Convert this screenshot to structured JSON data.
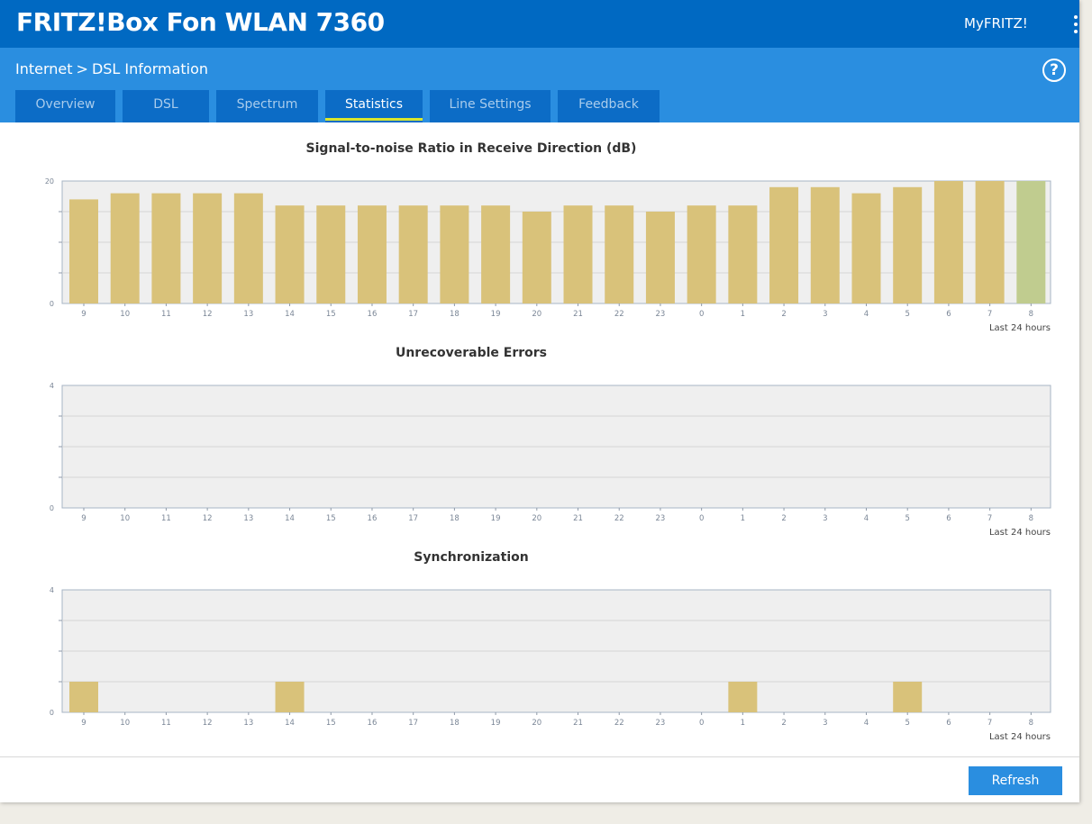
{
  "header": {
    "product_name": "FRITZ!Box Fon WLAN 7360",
    "myfritz_label": "MyFRITZ!",
    "menu_icon": "kebab-menu-icon"
  },
  "breadcrumb": {
    "parent": "Internet",
    "separator": ">",
    "current": "DSL Information"
  },
  "help_icon": "help-icon",
  "help_glyph": "?",
  "tabs": [
    {
      "label": "Overview",
      "active": false
    },
    {
      "label": "DSL",
      "active": false
    },
    {
      "label": "Spectrum",
      "active": false
    },
    {
      "label": "Statistics",
      "active": true
    },
    {
      "label": "Line Settings",
      "active": false
    },
    {
      "label": "Feedback",
      "active": false
    }
  ],
  "colors": {
    "header": "#0069c2",
    "subheader": "#2a8ee0",
    "tab_bg": "#0c6cc6",
    "tab_active_underline": "#d9e62d",
    "bar": "#d9c27a",
    "bar_current": "#c0cc8f",
    "plot_bg": "#efefef"
  },
  "chart_data": [
    {
      "type": "bar",
      "title": "Signal-to-noise Ratio in Receive Direction (dB)",
      "categories": [
        "9",
        "10",
        "11",
        "12",
        "13",
        "14",
        "15",
        "16",
        "17",
        "18",
        "19",
        "20",
        "21",
        "22",
        "23",
        "0",
        "1",
        "2",
        "3",
        "4",
        "5",
        "6",
        "7",
        "8"
      ],
      "values": [
        17,
        18,
        18,
        18,
        18,
        16,
        16,
        16,
        16,
        16,
        16,
        15,
        16,
        16,
        15,
        16,
        16,
        19,
        19,
        18,
        19,
        20,
        20,
        20
      ],
      "highlight_last": true,
      "ylim": [
        0,
        20
      ],
      "y_ticks": [
        "0",
        "20"
      ],
      "x_caption": "Last 24 hours",
      "grid": true
    },
    {
      "type": "bar",
      "title": "Unrecoverable Errors",
      "categories": [
        "9",
        "10",
        "11",
        "12",
        "13",
        "14",
        "15",
        "16",
        "17",
        "18",
        "19",
        "20",
        "21",
        "22",
        "23",
        "0",
        "1",
        "2",
        "3",
        "4",
        "5",
        "6",
        "7",
        "8"
      ],
      "values": [
        0,
        0,
        0,
        0,
        0,
        0,
        0,
        0,
        0,
        0,
        0,
        0,
        0,
        0,
        0,
        0,
        0,
        0,
        0,
        0,
        0,
        0,
        0,
        0
      ],
      "highlight_last": false,
      "ylim": [
        0,
        4
      ],
      "y_ticks": [
        "0",
        "4"
      ],
      "x_caption": "Last 24 hours",
      "grid": true
    },
    {
      "type": "bar",
      "title": "Synchronization",
      "categories": [
        "9",
        "10",
        "11",
        "12",
        "13",
        "14",
        "15",
        "16",
        "17",
        "18",
        "19",
        "20",
        "21",
        "22",
        "23",
        "0",
        "1",
        "2",
        "3",
        "4",
        "5",
        "6",
        "7",
        "8"
      ],
      "values": [
        1,
        0,
        0,
        0,
        0,
        1,
        0,
        0,
        0,
        0,
        0,
        0,
        0,
        0,
        0,
        0,
        1,
        0,
        0,
        0,
        1,
        0,
        0,
        0
      ],
      "highlight_last": false,
      "ylim": [
        0,
        4
      ],
      "y_ticks": [
        "0",
        "4"
      ],
      "x_caption": "Last 24 hours",
      "grid": true
    }
  ],
  "footer": {
    "refresh_label": "Refresh"
  }
}
